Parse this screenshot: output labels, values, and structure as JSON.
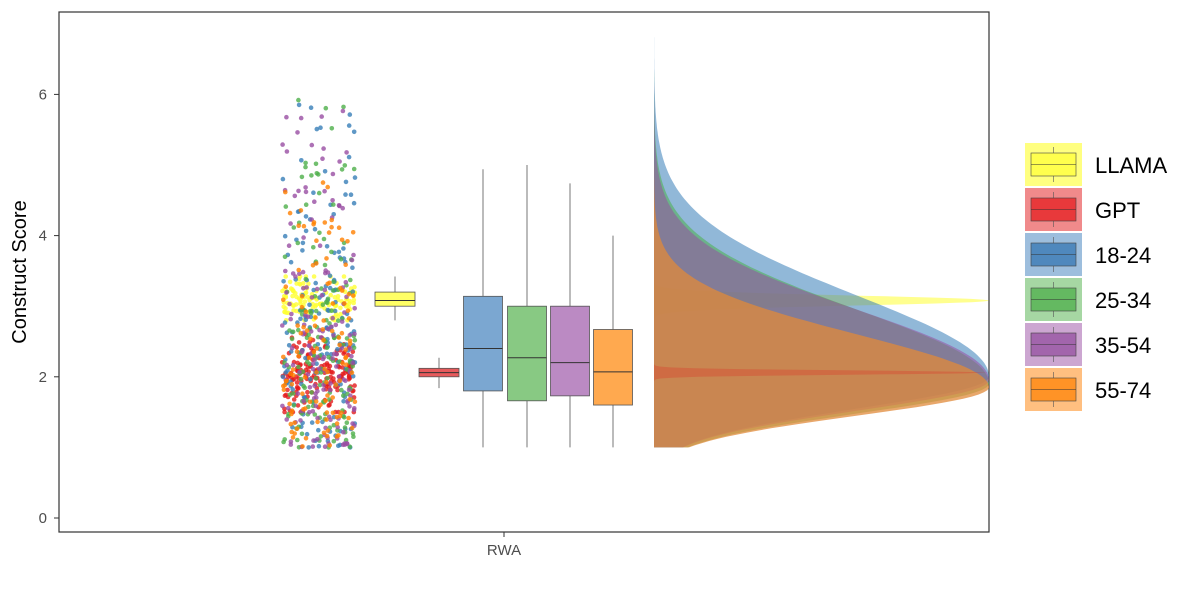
{
  "chart_data": {
    "type": "raincloud",
    "ylabel": "Construct Score",
    "xlabel": "",
    "x_category": "RWA",
    "ylim": [
      0,
      6.9
    ],
    "yticks": [
      0,
      2,
      4,
      6
    ],
    "grid": false,
    "legend_position": "right",
    "groups": [
      {
        "name": "LLAMA",
        "color": "#FFFF33",
        "box": {
          "min": 2.8,
          "q1": 3.0,
          "median": 3.08,
          "q3": 3.2,
          "max": 3.42
        },
        "points_range": [
          2.8,
          3.42
        ],
        "points_center": 3.08,
        "points_count": 130
      },
      {
        "name": "GPT",
        "color": "#E41A1C",
        "box": {
          "min": 1.84,
          "q1": 2.0,
          "median": 2.06,
          "q3": 2.12,
          "max": 2.27
        },
        "points_range": [
          1.5,
          2.6
        ],
        "points_center": 2.05,
        "points_count": 160
      },
      {
        "name": "18-24",
        "color": "#377EB8",
        "box": {
          "min": 1.0,
          "q1": 1.8,
          "median": 2.4,
          "q3": 3.14,
          "max": 4.94
        },
        "points_range": [
          1.0,
          5.96
        ],
        "points_center": 2.4,
        "points_count": 160
      },
      {
        "name": "25-34",
        "color": "#4DAF4A",
        "box": {
          "min": 1.0,
          "q1": 1.66,
          "median": 2.27,
          "q3": 3.0,
          "max": 5.0
        },
        "points_range": [
          1.0,
          6.07
        ],
        "points_center": 2.27,
        "points_count": 160
      },
      {
        "name": "35-54",
        "color": "#984EA3",
        "box": {
          "min": 1.0,
          "q1": 1.73,
          "median": 2.2,
          "q3": 3.0,
          "max": 4.74
        },
        "points_range": [
          1.0,
          5.8
        ],
        "points_center": 2.2,
        "points_count": 160
      },
      {
        "name": "55-74",
        "color": "#FF7F00",
        "box": {
          "min": 1.0,
          "q1": 1.6,
          "median": 2.07,
          "q3": 2.67,
          "max": 4.0
        },
        "points_range": [
          1.0,
          4.95
        ],
        "points_center": 2.07,
        "points_count": 120
      }
    ],
    "densities": [
      {
        "name": "LLAMA",
        "mode": 3.08,
        "sd_low": 0.07,
        "sd_high": 0.07,
        "peak": 1.0,
        "fill": "#FFFF33",
        "opacity": 0.55
      },
      {
        "name": "18-24",
        "mode": 2.0,
        "sd_low": 0.45,
        "sd_high": 1.15,
        "peak": 1.0,
        "fill": "#377EB8",
        "opacity": 0.55
      },
      {
        "name": "25-34",
        "mode": 1.9,
        "sd_low": 0.42,
        "sd_high": 1.05,
        "peak": 1.0,
        "fill": "#4DAF4A",
        "opacity": 0.55
      },
      {
        "name": "35-54",
        "mode": 1.95,
        "sd_low": 0.43,
        "sd_high": 1.0,
        "peak": 1.0,
        "fill": "#984EA3",
        "opacity": 0.55
      },
      {
        "name": "55-74",
        "mode": 1.85,
        "sd_low": 0.4,
        "sd_high": 0.75,
        "peak": 1.0,
        "fill": "#E08A3A",
        "opacity": 0.75
      },
      {
        "name": "GPT",
        "mode": 2.06,
        "sd_low": 0.03,
        "sd_high": 0.03,
        "peak": 1.0,
        "fill": "#E41A1C",
        "opacity": 0.25
      }
    ]
  }
}
